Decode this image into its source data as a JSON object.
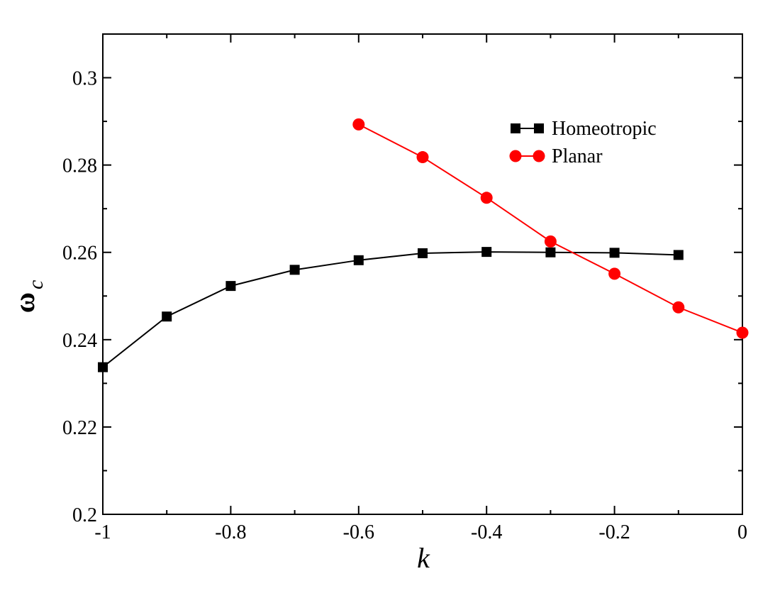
{
  "chart_data": {
    "type": "line",
    "title": "",
    "xlabel": "k",
    "ylabel": "ω",
    "ylabel_subscript": "c",
    "xlim": [
      -1,
      0
    ],
    "ylim": [
      0.2,
      0.31
    ],
    "x_ticks": [
      -1,
      -0.8,
      -0.6,
      -0.4,
      -0.2,
      0
    ],
    "x_tick_labels": [
      "-1",
      "-0.8",
      "-0.6",
      "-0.4",
      "-0.2",
      "0"
    ],
    "y_ticks": [
      0.2,
      0.22,
      0.24,
      0.26,
      0.28,
      0.3
    ],
    "y_tick_labels": [
      "0.2",
      "0.22",
      "0.24",
      "0.26",
      "0.28",
      "0.3"
    ],
    "grid": false,
    "legend_position": "top-right",
    "series": [
      {
        "name": "Homeotropic",
        "color": "#000000",
        "marker": "square",
        "x": [
          -1.0,
          -0.9,
          -0.8,
          -0.7,
          -0.6,
          -0.5,
          -0.4,
          -0.3,
          -0.2,
          -0.1
        ],
        "y": [
          0.2337,
          0.2453,
          0.2523,
          0.256,
          0.2582,
          0.2598,
          0.2601,
          0.26,
          0.2599,
          0.2594
        ]
      },
      {
        "name": "Planar",
        "color": "#ff0000",
        "marker": "circle",
        "x": [
          -0.6,
          -0.5,
          -0.4,
          -0.3,
          -0.2,
          -0.1,
          0.0
        ],
        "y": [
          0.2893,
          0.2818,
          0.2725,
          0.2625,
          0.2551,
          0.2474,
          0.2416
        ]
      }
    ]
  }
}
